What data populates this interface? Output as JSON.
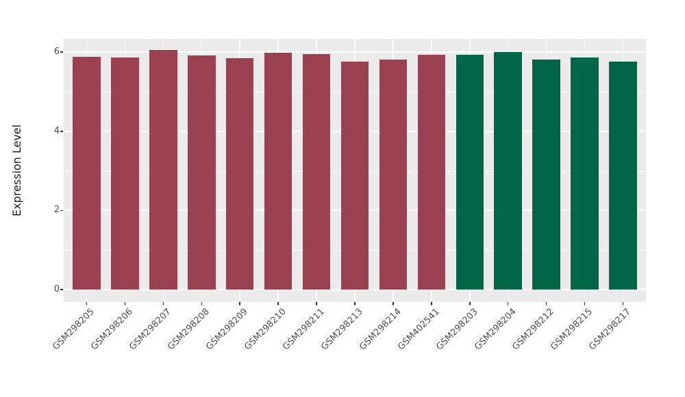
{
  "chart_data": {
    "type": "bar",
    "title": "",
    "xlabel": "",
    "ylabel": "Expression Level",
    "ylim": [
      0,
      6.35
    ],
    "yticks": [
      0,
      2,
      4,
      6
    ],
    "y_minor_ticks": [
      1,
      3,
      5
    ],
    "grid": "white major and minor horizontal lines plus white vertical lines at bar centers on gray panel",
    "legend_position": "none",
    "categories": [
      "GSM298205",
      "GSM298206",
      "GSM298207",
      "GSM298208",
      "GSM298209",
      "GSM298210",
      "GSM298211",
      "GSM298213",
      "GSM298214",
      "GSM402541",
      "GSM298203",
      "GSM298204",
      "GSM298212",
      "GSM298215",
      "GSM298217"
    ],
    "bars": [
      {
        "label": "GSM298205",
        "value": 5.89,
        "group": "groupA"
      },
      {
        "label": "GSM298206",
        "value": 5.86,
        "group": "groupA"
      },
      {
        "label": "GSM298207",
        "value": 6.05,
        "group": "groupA"
      },
      {
        "label": "GSM298208",
        "value": 5.92,
        "group": "groupA"
      },
      {
        "label": "GSM298209",
        "value": 5.84,
        "group": "groupA"
      },
      {
        "label": "GSM298210",
        "value": 5.98,
        "group": "groupA"
      },
      {
        "label": "GSM298211",
        "value": 5.96,
        "group": "groupA"
      },
      {
        "label": "GSM298213",
        "value": 5.76,
        "group": "groupA"
      },
      {
        "label": "GSM298214",
        "value": 5.82,
        "group": "groupA"
      },
      {
        "label": "GSM402541",
        "value": 5.93,
        "group": "groupA"
      },
      {
        "label": "GSM298203",
        "value": 5.93,
        "group": "groupB"
      },
      {
        "label": "GSM298204",
        "value": 6.01,
        "group": "groupB"
      },
      {
        "label": "GSM298212",
        "value": 5.81,
        "group": "groupB"
      },
      {
        "label": "GSM298215",
        "value": 5.87,
        "group": "groupB"
      },
      {
        "label": "GSM298217",
        "value": 5.76,
        "group": "groupB"
      }
    ],
    "group_colors": {
      "groupA": "#9A4252",
      "groupB": "#006647"
    },
    "style": {
      "panel_bg": "#EBEBEB",
      "grid_color": "#FFFFFF",
      "tick_label_color": "#4D4D4D",
      "axis_title_color": "#1A1A1A",
      "tick_mark_color": "#333333",
      "figure_bg": "#FFFFFF"
    }
  }
}
